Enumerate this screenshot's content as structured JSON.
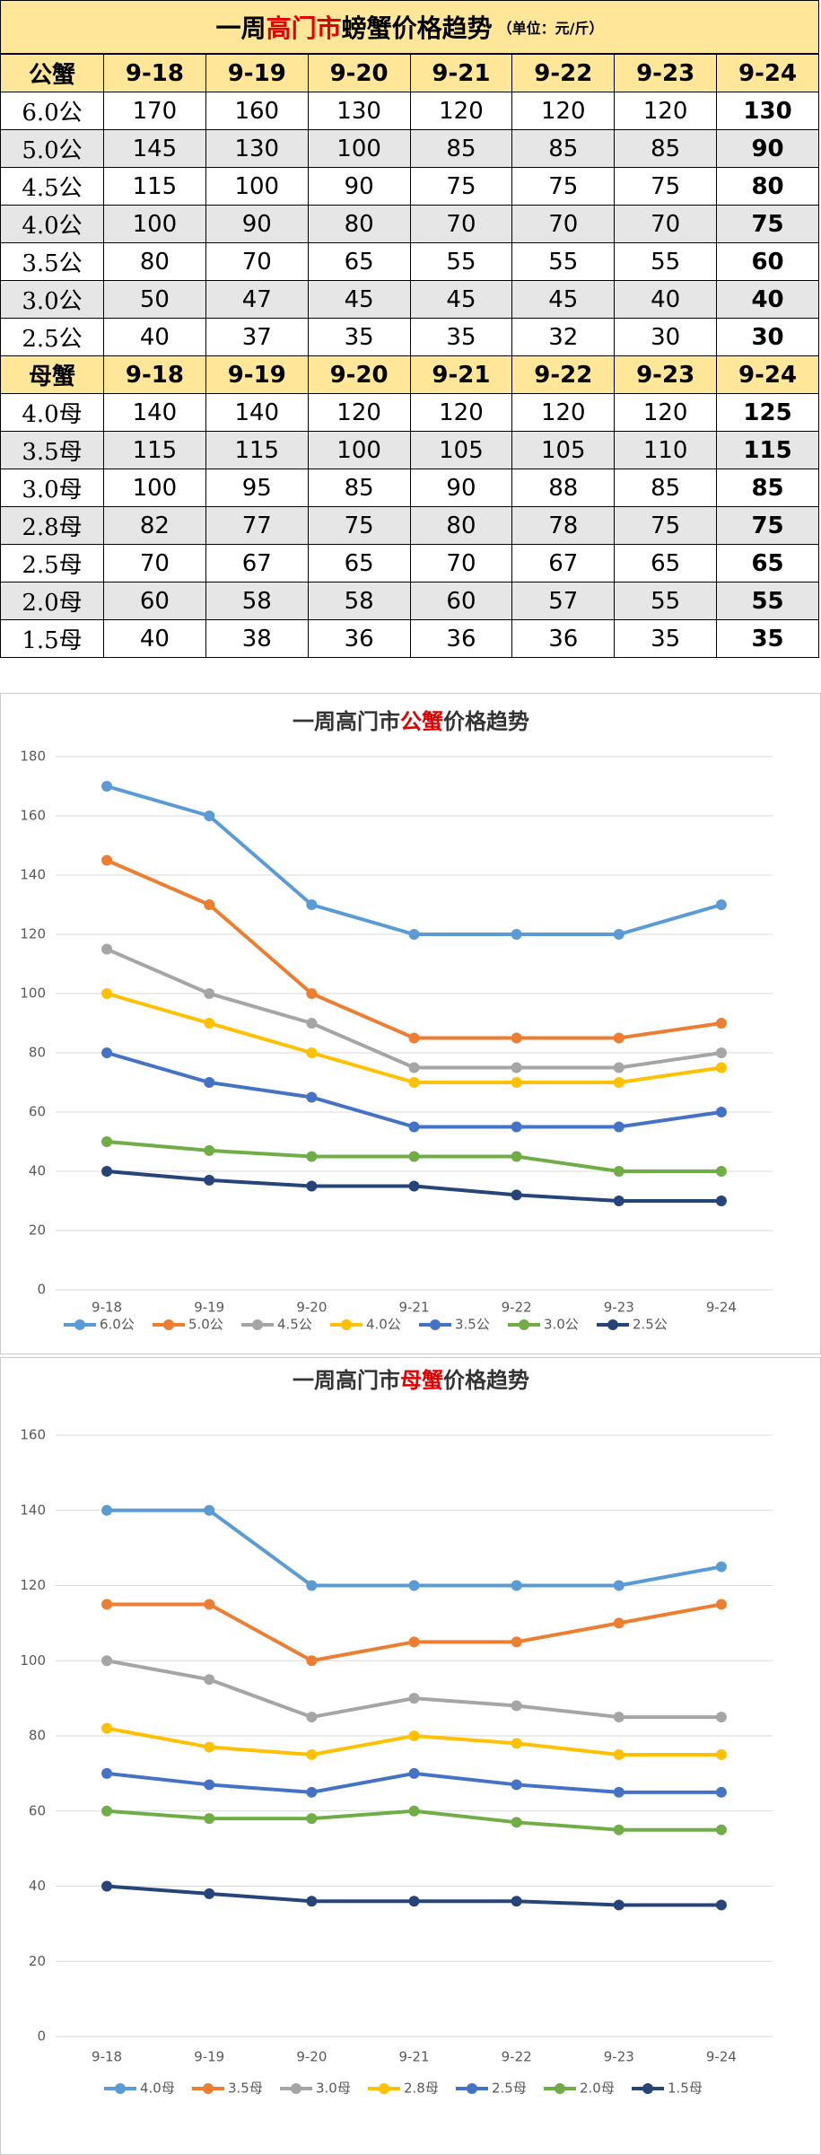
{
  "table": {
    "title_parts": [
      "一周",
      "高门市",
      "螃蟹价格趋势"
    ],
    "unit": "（单位：元/斤）",
    "sections": [
      {
        "header": [
          "公蟹",
          "9-18",
          "9-19",
          "9-20",
          "9-21",
          "9-22",
          "9-23",
          "9-24"
        ],
        "rows": [
          {
            "label": "6.0公",
            "values": [
              170,
              160,
              130,
              120,
              120,
              120,
              130
            ]
          },
          {
            "label": "5.0公",
            "values": [
              145,
              130,
              100,
              85,
              85,
              85,
              90
            ]
          },
          {
            "label": "4.5公",
            "values": [
              115,
              100,
              90,
              75,
              75,
              75,
              80
            ]
          },
          {
            "label": "4.0公",
            "values": [
              100,
              90,
              80,
              70,
              70,
              70,
              75
            ]
          },
          {
            "label": "3.5公",
            "values": [
              80,
              70,
              65,
              55,
              55,
              55,
              60
            ]
          },
          {
            "label": "3.0公",
            "values": [
              50,
              47,
              45,
              45,
              45,
              40,
              40
            ]
          },
          {
            "label": "2.5公",
            "values": [
              40,
              37,
              35,
              35,
              32,
              30,
              30
            ]
          }
        ]
      },
      {
        "header": [
          "母蟹",
          "9-18",
          "9-19",
          "9-20",
          "9-21",
          "9-22",
          "9-23",
          "9-24"
        ],
        "rows": [
          {
            "label": "4.0母",
            "values": [
              140,
              140,
              120,
              120,
              120,
              120,
              125
            ]
          },
          {
            "label": "3.5母",
            "values": [
              115,
              115,
              100,
              105,
              105,
              110,
              115
            ]
          },
          {
            "label": "3.0母",
            "values": [
              100,
              95,
              85,
              90,
              88,
              85,
              85
            ]
          },
          {
            "label": "2.8母",
            "values": [
              82,
              77,
              75,
              80,
              78,
              75,
              75
            ]
          },
          {
            "label": "2.5母",
            "values": [
              70,
              67,
              65,
              70,
              67,
              65,
              65
            ]
          },
          {
            "label": "2.0母",
            "values": [
              60,
              58,
              58,
              60,
              57,
              55,
              55
            ]
          },
          {
            "label": "1.5母",
            "values": [
              40,
              38,
              36,
              36,
              36,
              35,
              35
            ]
          }
        ]
      }
    ]
  },
  "chart_data": [
    {
      "type": "line",
      "title_parts": [
        "一周高门市",
        "公蟹",
        "价格趋势"
      ],
      "categories": [
        "9-18",
        "9-19",
        "9-20",
        "9-21",
        "9-22",
        "9-23",
        "9-24"
      ],
      "ylim": [
        0,
        180
      ],
      "yticks": [
        0,
        20,
        40,
        60,
        80,
        100,
        120,
        140,
        160,
        180
      ],
      "grid": true,
      "legend": "bottom",
      "series": [
        {
          "name": "6.0公",
          "color": "#5b9bd5",
          "values": [
            170,
            160,
            130,
            120,
            120,
            120,
            130
          ]
        },
        {
          "name": "5.0公",
          "color": "#ed7d31",
          "values": [
            145,
            130,
            100,
            85,
            85,
            85,
            90
          ]
        },
        {
          "name": "4.5公",
          "color": "#a5a5a5",
          "values": [
            115,
            100,
            90,
            75,
            75,
            75,
            80
          ]
        },
        {
          "name": "4.0公",
          "color": "#ffc000",
          "values": [
            100,
            90,
            80,
            70,
            70,
            70,
            75
          ]
        },
        {
          "name": "3.5公",
          "color": "#4472c4",
          "values": [
            80,
            70,
            65,
            55,
            55,
            55,
            60
          ]
        },
        {
          "name": "3.0公",
          "color": "#70ad47",
          "values": [
            50,
            47,
            45,
            45,
            45,
            40,
            40
          ]
        },
        {
          "name": "2.5公",
          "color": "#264478",
          "values": [
            40,
            37,
            35,
            35,
            32,
            30,
            30
          ]
        }
      ]
    },
    {
      "type": "line",
      "title_parts": [
        "一周高门市",
        "母蟹",
        "价格趋势"
      ],
      "categories": [
        "9-18",
        "9-19",
        "9-20",
        "9-21",
        "9-22",
        "9-23",
        "9-24"
      ],
      "ylim": [
        0,
        160
      ],
      "yticks": [
        0,
        20,
        40,
        60,
        80,
        100,
        120,
        140,
        160
      ],
      "grid": true,
      "legend": "bottom",
      "series": [
        {
          "name": "4.0母",
          "color": "#5b9bd5",
          "values": [
            140,
            140,
            120,
            120,
            120,
            120,
            125
          ]
        },
        {
          "name": "3.5母",
          "color": "#ed7d31",
          "values": [
            115,
            115,
            100,
            105,
            105,
            110,
            115
          ]
        },
        {
          "name": "3.0母",
          "color": "#a5a5a5",
          "values": [
            100,
            95,
            85,
            90,
            88,
            85,
            85
          ]
        },
        {
          "name": "2.8母",
          "color": "#ffc000",
          "values": [
            82,
            77,
            75,
            80,
            78,
            75,
            75
          ]
        },
        {
          "name": "2.5母",
          "color": "#4472c4",
          "values": [
            70,
            67,
            65,
            70,
            67,
            65,
            65
          ]
        },
        {
          "name": "2.0母",
          "color": "#70ad47",
          "values": [
            60,
            58,
            58,
            60,
            57,
            55,
            55
          ]
        },
        {
          "name": "1.5母",
          "color": "#264478",
          "values": [
            40,
            38,
            36,
            36,
            36,
            35,
            35
          ]
        }
      ]
    }
  ]
}
